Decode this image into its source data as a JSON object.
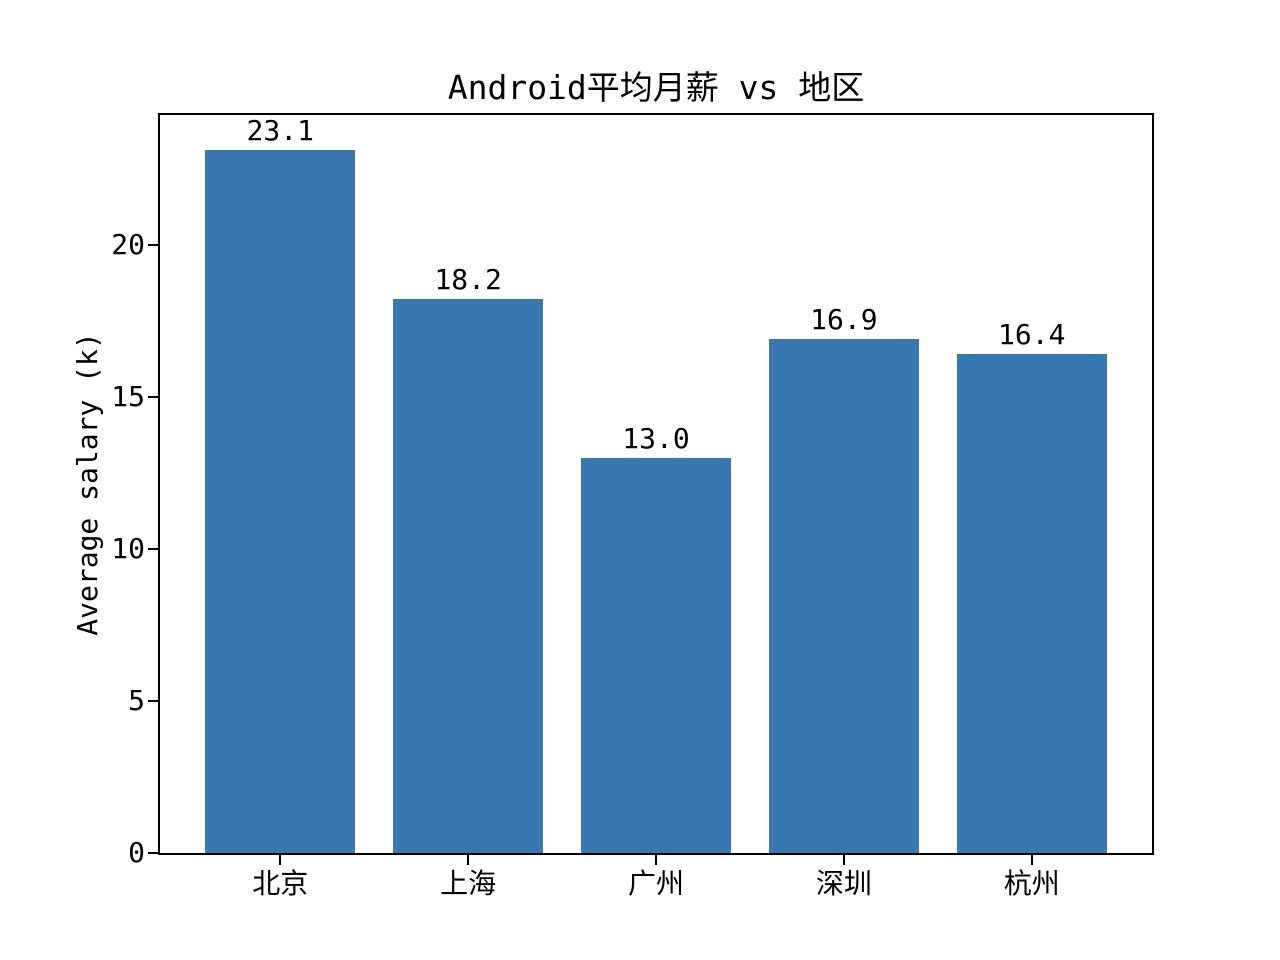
{
  "figure": {
    "background": "#ffffff",
    "text_color": "#000000"
  },
  "chart_data": {
    "type": "bar",
    "title": "Android平均月薪 vs 地区",
    "categories": [
      "北京",
      "上海",
      "广州",
      "深圳",
      "杭州"
    ],
    "values": [
      23.1,
      18.2,
      13.0,
      16.9,
      16.4
    ],
    "bar_labels": [
      "23.1",
      "18.2",
      "13.0",
      "16.9",
      "16.4"
    ],
    "xlabel": "",
    "ylabel": "Average salary (k)",
    "ylim": [
      0,
      24.26
    ],
    "yticks": [
      0,
      5,
      10,
      15,
      20
    ],
    "grid": false,
    "legend": null,
    "bar_color": "#3878b0",
    "bar_width_fraction": 0.8,
    "x_pad": 0.64
  }
}
